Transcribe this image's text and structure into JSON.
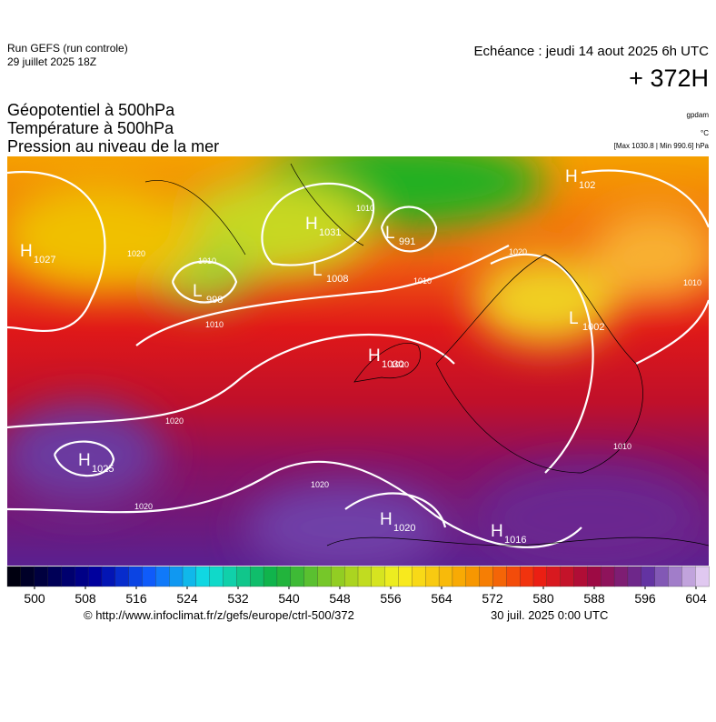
{
  "header": {
    "run": "Run GEFS (run controle)",
    "run_date": "29 juillet 2025 18Z",
    "valid": "Echéance : jeudi 14 aout 2025 6h UTC",
    "lead": "+ 372H"
  },
  "fields": [
    "Géopotentiel à 500hPa",
    "Température à 500hPa",
    "Pression au niveau de la mer"
  ],
  "units": {
    "geopotential": "gpdam",
    "temperature": "°C",
    "pressure": "[Max 1030.8 | Min 990.6] hPa"
  },
  "centers": [
    {
      "letter": "H",
      "value": 1027
    },
    {
      "letter": "H",
      "value": 1031
    },
    {
      "letter": "L",
      "value": 991
    },
    {
      "letter": "L",
      "value": 1008
    },
    {
      "letter": "L",
      "value": 998
    },
    {
      "letter": "H",
      "value": 1030
    },
    {
      "letter": "H",
      "value": 1025
    },
    {
      "letter": "H",
      "value": 1020
    },
    {
      "letter": "H",
      "value": 1016
    },
    {
      "letter": "L",
      "value": 1002
    },
    {
      "letter": "H",
      "value": 102
    }
  ],
  "isobar_labels": [
    1020,
    1010,
    1010,
    1020,
    1020,
    1020,
    1010,
    1020,
    1010,
    1010,
    1010,
    1020
  ],
  "colorbar": {
    "ticks": [
      500,
      508,
      516,
      524,
      532,
      540,
      548,
      556,
      564,
      572,
      580,
      588,
      596,
      604
    ]
  },
  "footer": {
    "source": "© http://www.infoclimat.fr/z/gefs/europe/ctrl-500/372",
    "issued": "30 juil. 2025  0:00 UTC"
  }
}
